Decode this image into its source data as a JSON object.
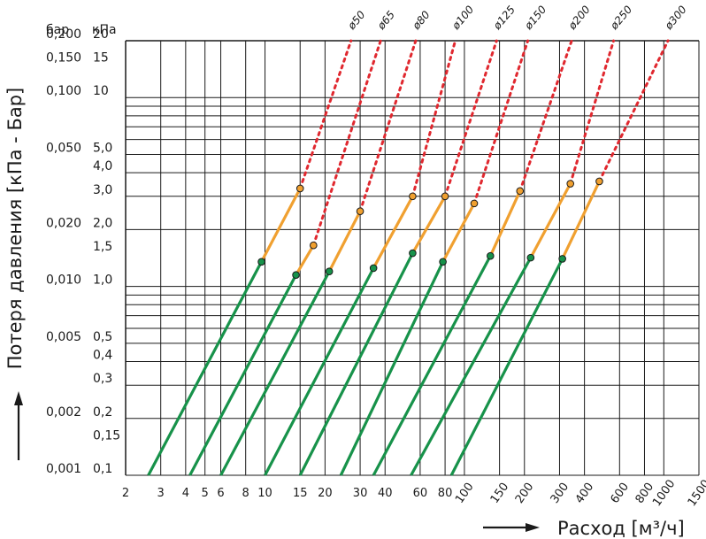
{
  "chart_data": {
    "type": "line",
    "title": "",
    "xlabel": "Расход [м³/ч]",
    "ylabel": "Потеря давления [кПа - Бар]",
    "x_scale": "log",
    "y_scale": "log",
    "xlim": [
      2,
      1500
    ],
    "ylim": [
      0.1,
      20
    ],
    "grid": true,
    "y_units": {
      "left": "бар",
      "right": "кПа"
    },
    "x_ticks": [
      "2",
      "3",
      "4",
      "5",
      "6",
      "8",
      "10",
      "15",
      "20",
      "30",
      "40",
      "60",
      "80",
      "100",
      "150",
      "200",
      "300",
      "400",
      "600",
      "800",
      "1000",
      "1500"
    ],
    "y_ticks_kpa": [
      "0,1",
      "0,15",
      "0,2",
      "0,3",
      "0,4",
      "0,5",
      "1,0",
      "1,5",
      "2,0",
      "3,0",
      "4,0",
      "5,0",
      "10",
      "15",
      "20"
    ],
    "y_ticks_bar": [
      "0,001",
      "0,002",
      "0,005",
      "0,010",
      "0,020",
      "0,050",
      "0,100",
      "0,150",
      "0,200"
    ],
    "segment_colors": {
      "recommended": "#17924a",
      "acceptable": "#f0a030",
      "excessive": "#e0282f"
    },
    "series": [
      {
        "name": "ø50",
        "points": [
          [
            2.6,
            0.1
          ],
          [
            9.6,
            1.35
          ],
          [
            15,
            3.3
          ],
          [
            27,
            20
          ]
        ]
      },
      {
        "name": "ø65",
        "points": [
          [
            4.2,
            0.1
          ],
          [
            14.3,
            1.15
          ],
          [
            17.5,
            1.65
          ],
          [
            38,
            20
          ]
        ]
      },
      {
        "name": "ø80",
        "points": [
          [
            6.0,
            0.1
          ],
          [
            21,
            1.2
          ],
          [
            30,
            2.5
          ],
          [
            57,
            20
          ]
        ]
      },
      {
        "name": "ø100",
        "points": [
          [
            10,
            0.1
          ],
          [
            35,
            1.25
          ],
          [
            55,
            3.0
          ],
          [
            90,
            20
          ]
        ]
      },
      {
        "name": "ø125",
        "points": [
          [
            15,
            0.1
          ],
          [
            55,
            1.5
          ],
          [
            80,
            3.0
          ],
          [
            145,
            20
          ]
        ]
      },
      {
        "name": "ø150",
        "points": [
          [
            24,
            0.1
          ],
          [
            78,
            1.35
          ],
          [
            112,
            2.75
          ],
          [
            208,
            20
          ]
        ]
      },
      {
        "name": "ø200",
        "points": [
          [
            35,
            0.1
          ],
          [
            135,
            1.45
          ],
          [
            190,
            3.2
          ],
          [
            345,
            20
          ]
        ]
      },
      {
        "name": "ø250",
        "points": [
          [
            54,
            0.1
          ],
          [
            215,
            1.42
          ],
          [
            340,
            3.5
          ],
          [
            560,
            20
          ]
        ]
      },
      {
        "name": "ø300",
        "points": [
          [
            86,
            0.1
          ],
          [
            310,
            1.4
          ],
          [
            475,
            3.6
          ],
          [
            1050,
            20
          ]
        ]
      }
    ]
  }
}
